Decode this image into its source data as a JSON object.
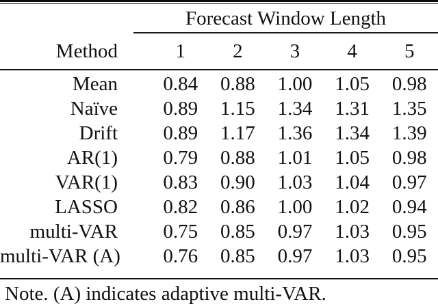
{
  "table": {
    "spanner_title": "Forecast Window Length",
    "method_header": "Method",
    "window_headers": [
      "1",
      "2",
      "3",
      "4",
      "5"
    ],
    "rows": [
      {
        "method": "Mean",
        "values": [
          "0.84",
          "0.88",
          "1.00",
          "1.05",
          "0.98"
        ]
      },
      {
        "method": "Naïve",
        "values": [
          "0.89",
          "1.15",
          "1.34",
          "1.31",
          "1.35"
        ]
      },
      {
        "method": "Drift",
        "values": [
          "0.89",
          "1.17",
          "1.36",
          "1.34",
          "1.39"
        ]
      },
      {
        "method": "AR(1)",
        "values": [
          "0.79",
          "0.88",
          "1.01",
          "1.05",
          "0.98"
        ]
      },
      {
        "method": "VAR(1)",
        "values": [
          "0.83",
          "0.90",
          "1.03",
          "1.04",
          "0.97"
        ]
      },
      {
        "method": "LASSO",
        "values": [
          "0.82",
          "0.86",
          "1.00",
          "1.02",
          "0.94"
        ]
      },
      {
        "method": "multi-VAR",
        "values": [
          "0.75",
          "0.85",
          "0.97",
          "1.03",
          "0.95"
        ]
      },
      {
        "method": "multi-VAR (A)",
        "values": [
          "0.76",
          "0.85",
          "0.97",
          "1.03",
          "0.95"
        ]
      }
    ],
    "note": "Note. (A) indicates adaptive multi-VAR."
  },
  "colors": {
    "text": "#111111",
    "rule": "#0a0a0a",
    "background": "#ffffff"
  }
}
